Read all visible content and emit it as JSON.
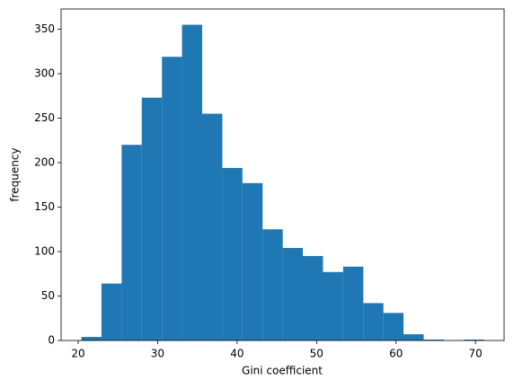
{
  "chart_data": {
    "type": "histogram",
    "x_label": "Gini coefficient",
    "y_label": "frequency",
    "bins": [
      20.4,
      22.93,
      25.47,
      28.0,
      30.54,
      33.07,
      35.6,
      38.14,
      40.67,
      43.21,
      45.74,
      48.27,
      50.81,
      53.34,
      55.88,
      58.41,
      60.94,
      63.48,
      66.01,
      68.55,
      71.08
    ],
    "values": [
      4,
      64,
      220,
      273,
      319,
      355,
      255,
      194,
      177,
      125,
      104,
      95,
      77,
      83,
      42,
      31,
      7,
      1,
      0,
      1
    ],
    "color": "#1f77b4",
    "xlim": [
      17.85,
      73.6
    ],
    "xticks": [
      20,
      30,
      40,
      50,
      60,
      70
    ],
    "ylim": [
      0,
      372.75
    ],
    "yticks": [
      0,
      50,
      100,
      150,
      200,
      250,
      300,
      350
    ]
  }
}
